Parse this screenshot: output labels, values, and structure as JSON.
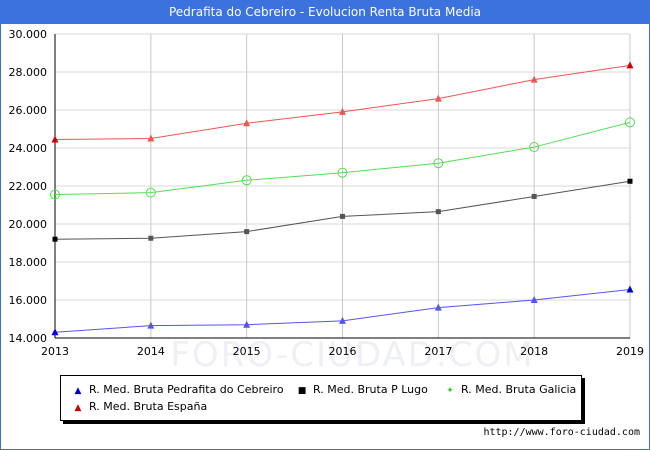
{
  "header": {
    "title": "Pedrafita do Cebreiro - Evolucion Renta Bruta Media"
  },
  "watermark": "FORO-CIUDAD.COM",
  "source_url": "http://www.foro-ciudad.com",
  "chart_data": {
    "type": "line",
    "title": "Pedrafita do Cebreiro - Evolucion Renta Bruta Media",
    "x": [
      2013,
      2014,
      2015,
      2016,
      2017,
      2018,
      2019
    ],
    "x_tick_labels": [
      "2013",
      "2014",
      "2015",
      "2016",
      "2017",
      "2018",
      "2019"
    ],
    "ylim": [
      14000,
      30000
    ],
    "y_ticks": [
      14000,
      16000,
      18000,
      20000,
      22000,
      24000,
      26000,
      28000,
      30000
    ],
    "y_tick_labels": [
      "14.000",
      "16.000",
      "18.000",
      "20.000",
      "22.000",
      "24.000",
      "26.000",
      "28.000",
      "30.000"
    ],
    "grid": true,
    "legend_placement": "bottom",
    "series": [
      {
        "name": "R. Med. Bruta Pedrafita do Cebreiro",
        "color": "#5555ee",
        "marker": "triangle",
        "values": [
          14300,
          14650,
          14700,
          14900,
          15600,
          16000,
          16550
        ]
      },
      {
        "name": "R. Med. Bruta P Lugo",
        "color": "#555555",
        "marker": "square",
        "values": [
          19200,
          19250,
          19600,
          20400,
          20650,
          21450,
          22250
        ]
      },
      {
        "name": "R. Med. Bruta Galicia",
        "color": "#55dd55",
        "marker": "diamond",
        "values": [
          21550,
          21650,
          22300,
          22700,
          23200,
          24050,
          25350
        ]
      },
      {
        "name": "R. Med. Bruta España",
        "color": "#ee5555",
        "marker": "triangle",
        "values": [
          24450,
          24500,
          25300,
          25900,
          26600,
          27600,
          28350
        ]
      }
    ],
    "legend_marker_colors": [
      "#0000cc",
      "#000000",
      "#33cc33",
      "#cc0000"
    ]
  }
}
